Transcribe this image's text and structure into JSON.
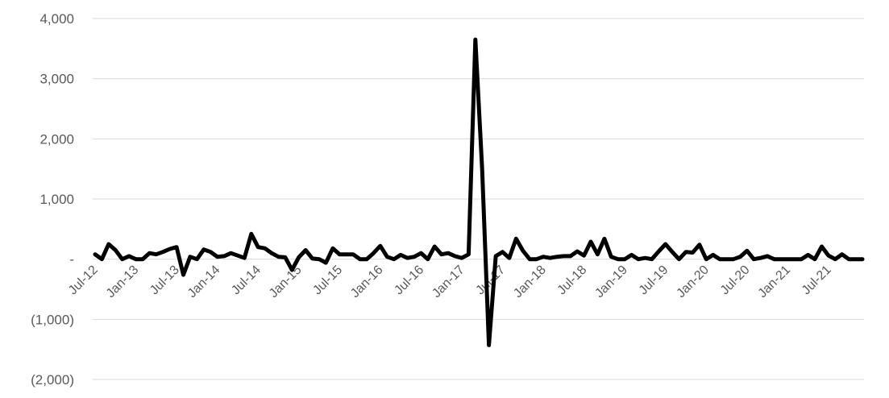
{
  "chart_data": {
    "type": "line",
    "title": "",
    "xlabel": "",
    "ylabel": "",
    "ylim": [
      -2000,
      4000
    ],
    "yticks": [
      {
        "value": 4000,
        "label": "4,000"
      },
      {
        "value": 3000,
        "label": "3,000"
      },
      {
        "value": 2000,
        "label": "2,000"
      },
      {
        "value": 1000,
        "label": "1,000"
      },
      {
        "value": 0,
        "label": "-"
      },
      {
        "value": -1000,
        "label": "(1,000)"
      },
      {
        "value": -2000,
        "label": "(2,000)"
      }
    ],
    "x_start": "Jul-12",
    "x_end": "Dec-21",
    "xticks": [
      "Jul-12",
      "Jan-13",
      "Jul-13",
      "Jan-14",
      "Jul-14",
      "Jan-15",
      "Jul-15",
      "Jan-16",
      "Jul-16",
      "Jan-17",
      "Jul-17",
      "Jan-18",
      "Jul-18",
      "Jan-19",
      "Jul-19",
      "Jan-20",
      "Jul-20",
      "Jan-21",
      "Jul-21"
    ],
    "grid": true,
    "legend": "none",
    "line_color": "#000000",
    "series": [
      {
        "values": [
          80,
          0,
          250,
          150,
          0,
          50,
          0,
          0,
          100,
          80,
          120,
          170,
          200,
          -260,
          40,
          0,
          160,
          120,
          40,
          50,
          100,
          60,
          20,
          420,
          200,
          180,
          100,
          40,
          30,
          -180,
          30,
          150,
          10,
          0,
          -60,
          180,
          80,
          80,
          80,
          0,
          0,
          100,
          220,
          40,
          0,
          70,
          20,
          40,
          100,
          0,
          210,
          80,
          100,
          50,
          20,
          80,
          3650,
          1500,
          -1430,
          50,
          120,
          20,
          340,
          140,
          0,
          0,
          40,
          20,
          40,
          50,
          50,
          130,
          60,
          290,
          80,
          340,
          40,
          0,
          0,
          70,
          0,
          20,
          0,
          130,
          250,
          120,
          0,
          120,
          110,
          240,
          0,
          70,
          0,
          0,
          0,
          40,
          140,
          0,
          20,
          50,
          0,
          0,
          0,
          0,
          0,
          70,
          0,
          210,
          60,
          0,
          80,
          0,
          0,
          0
        ]
      }
    ]
  }
}
